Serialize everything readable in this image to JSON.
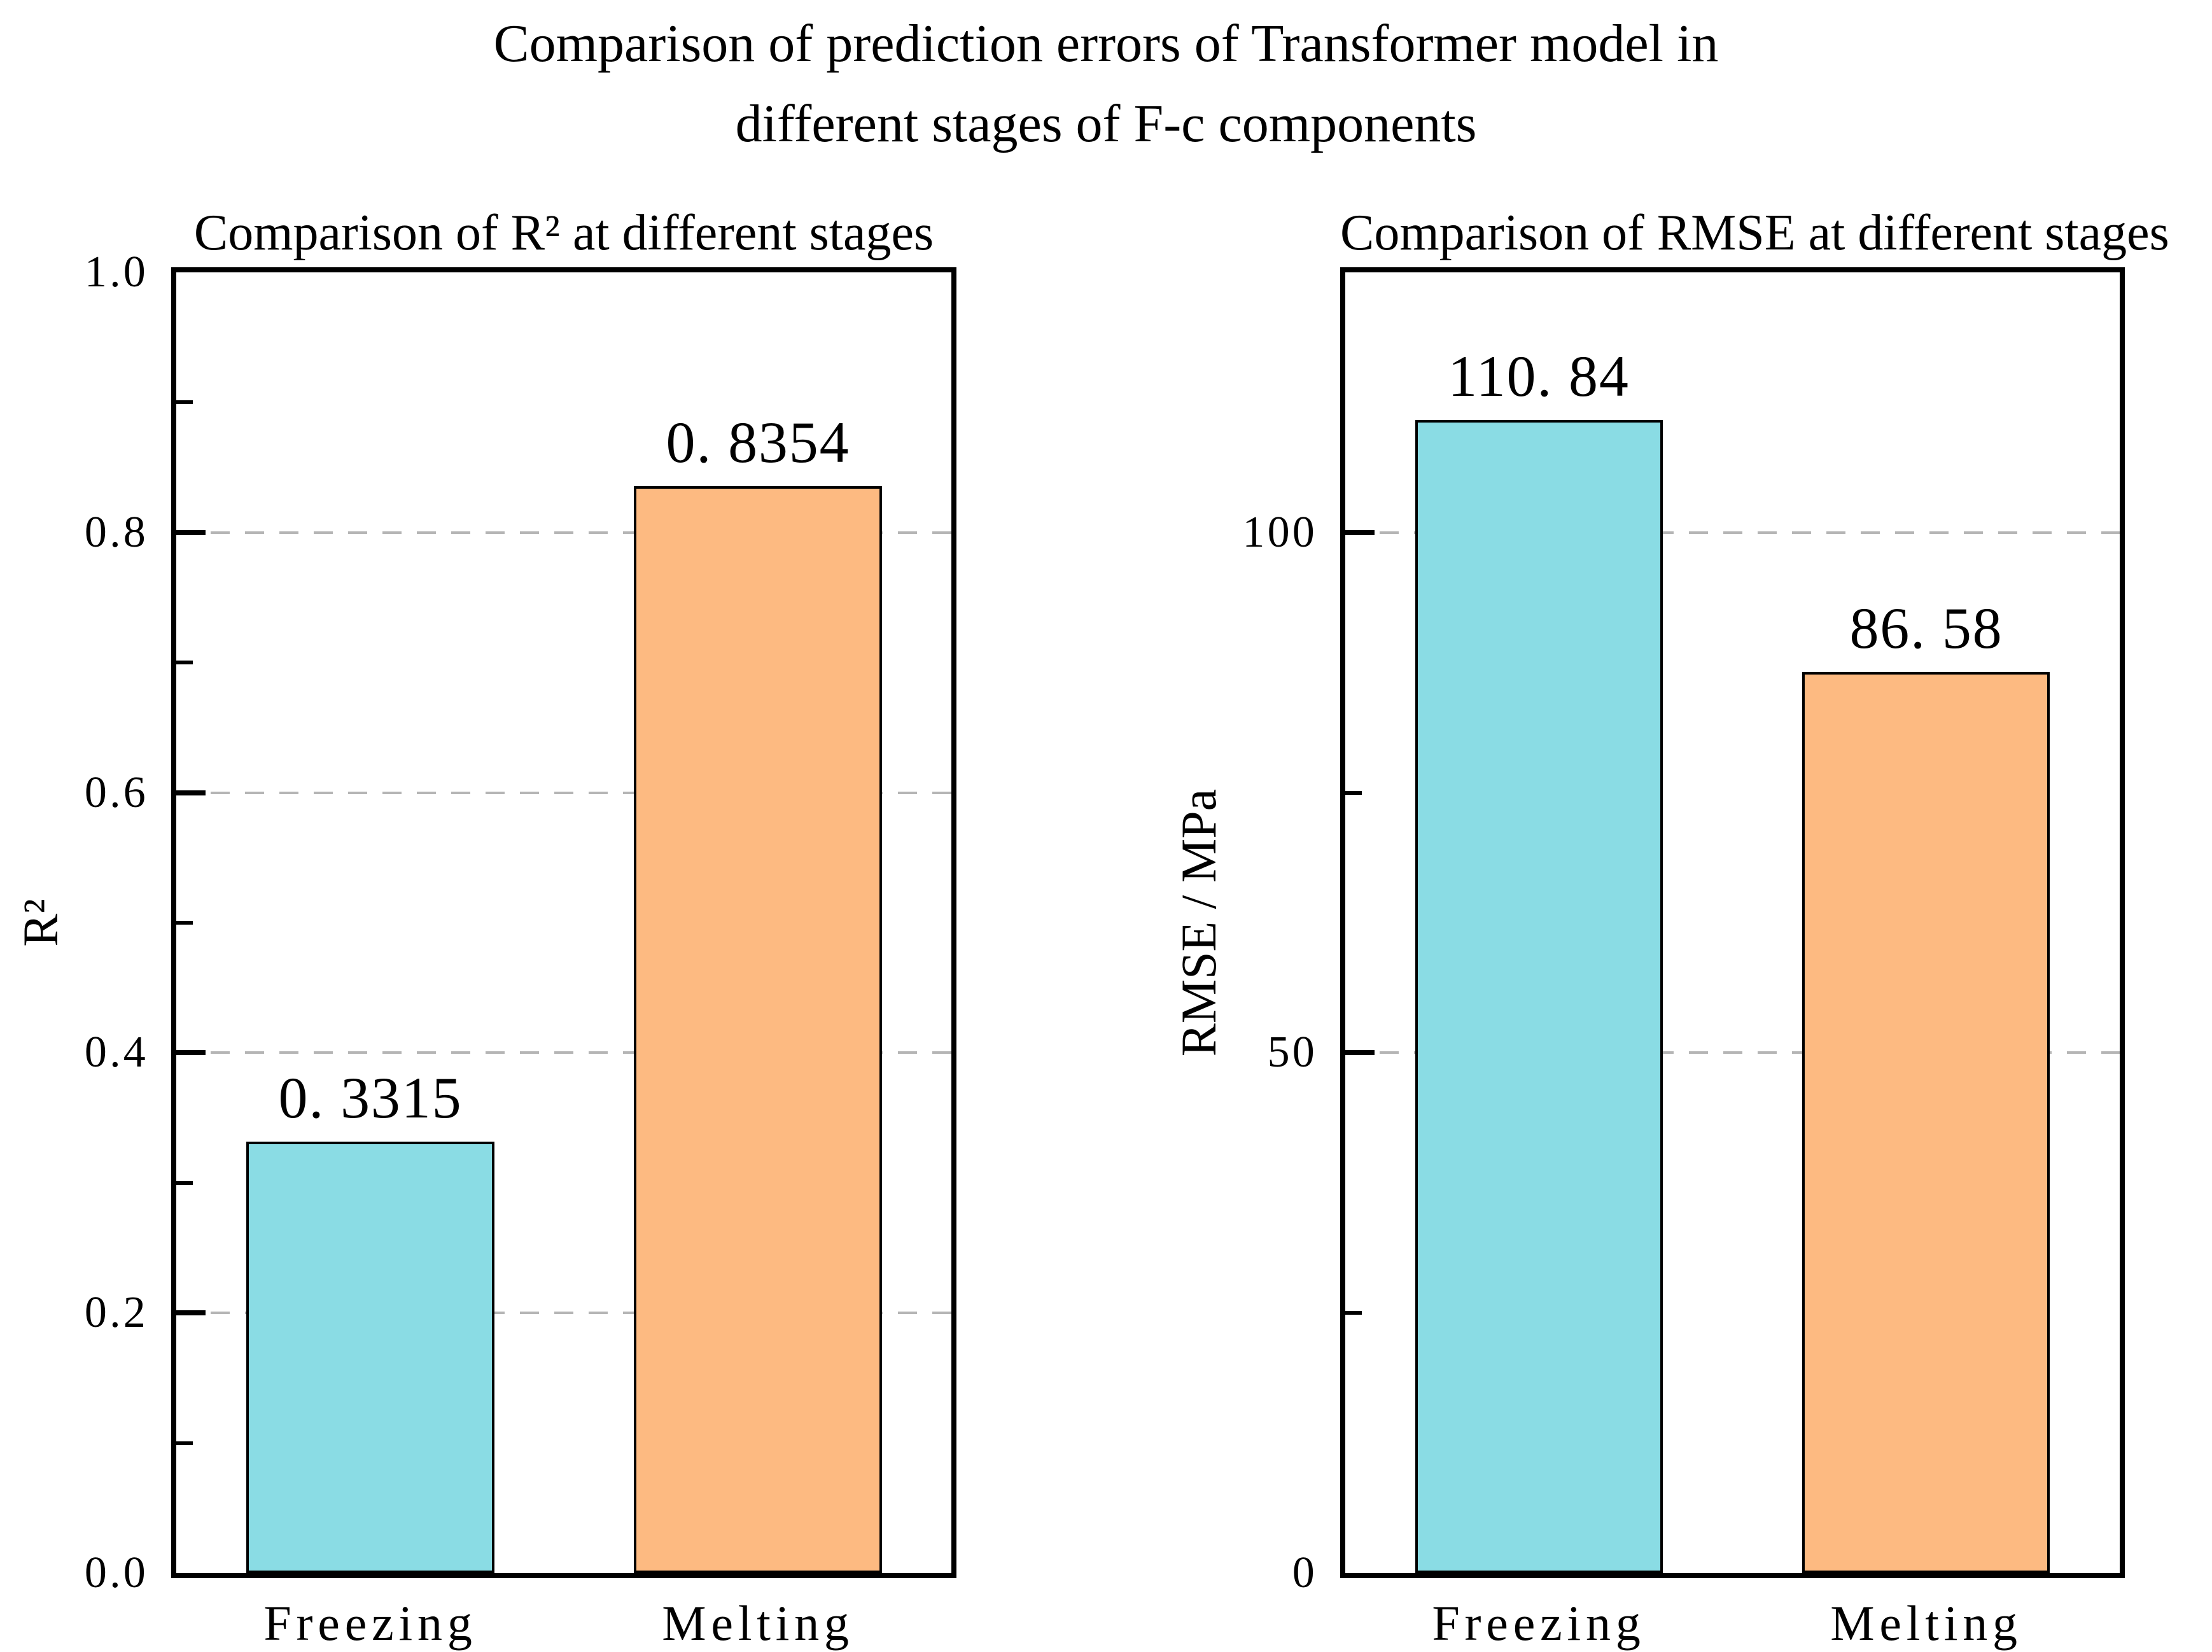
{
  "figure": {
    "title_line1": "Comparison of prediction errors of Transformer model in",
    "title_line2": "different stages of F-c components",
    "background": "#ffffff",
    "text_color": "#000000",
    "gridline_color": "#b5b5b5",
    "bar_edge_color": "#000000"
  },
  "chart_data": [
    {
      "type": "bar",
      "title": "Comparison of R² at different stages",
      "ylabel": "R²",
      "xlabel": "",
      "categories": [
        "Freezing",
        "Melting"
      ],
      "values": [
        0.3315,
        0.8354
      ],
      "value_labels": [
        "0. 3315",
        "0. 8354"
      ],
      "bar_colors": [
        "#8ADCE4",
        "#FDBA81"
      ],
      "ylim": [
        0,
        1.0
      ],
      "yticks": [
        0.0,
        0.2,
        0.4,
        0.6,
        0.8,
        1.0
      ],
      "ytick_labels": [
        "0.0",
        "0.2",
        "0.4",
        "0.6",
        "0.8",
        "1.0"
      ],
      "minor_yticks": [
        0.1,
        0.3,
        0.5,
        0.7,
        0.9
      ],
      "gridlines": [
        0.2,
        0.4,
        0.6,
        0.8
      ],
      "grid_style": "dashed",
      "legend": "none"
    },
    {
      "type": "bar",
      "title": "Comparison of RMSE at different stages",
      "ylabel": "RMSE / MPa",
      "xlabel": "",
      "categories": [
        "Freezing",
        "Melting"
      ],
      "values": [
        110.84,
        86.58
      ],
      "value_labels": [
        "110. 84",
        "86. 58"
      ],
      "bar_colors": [
        "#8ADCE4",
        "#FDBA81"
      ],
      "ylim": [
        0,
        125
      ],
      "yticks": [
        0,
        50,
        100
      ],
      "ytick_labels": [
        "0",
        "50",
        "100"
      ],
      "minor_yticks": [
        25,
        75
      ],
      "gridlines": [
        50,
        100
      ],
      "grid_style": "dashed",
      "legend": "none"
    }
  ]
}
